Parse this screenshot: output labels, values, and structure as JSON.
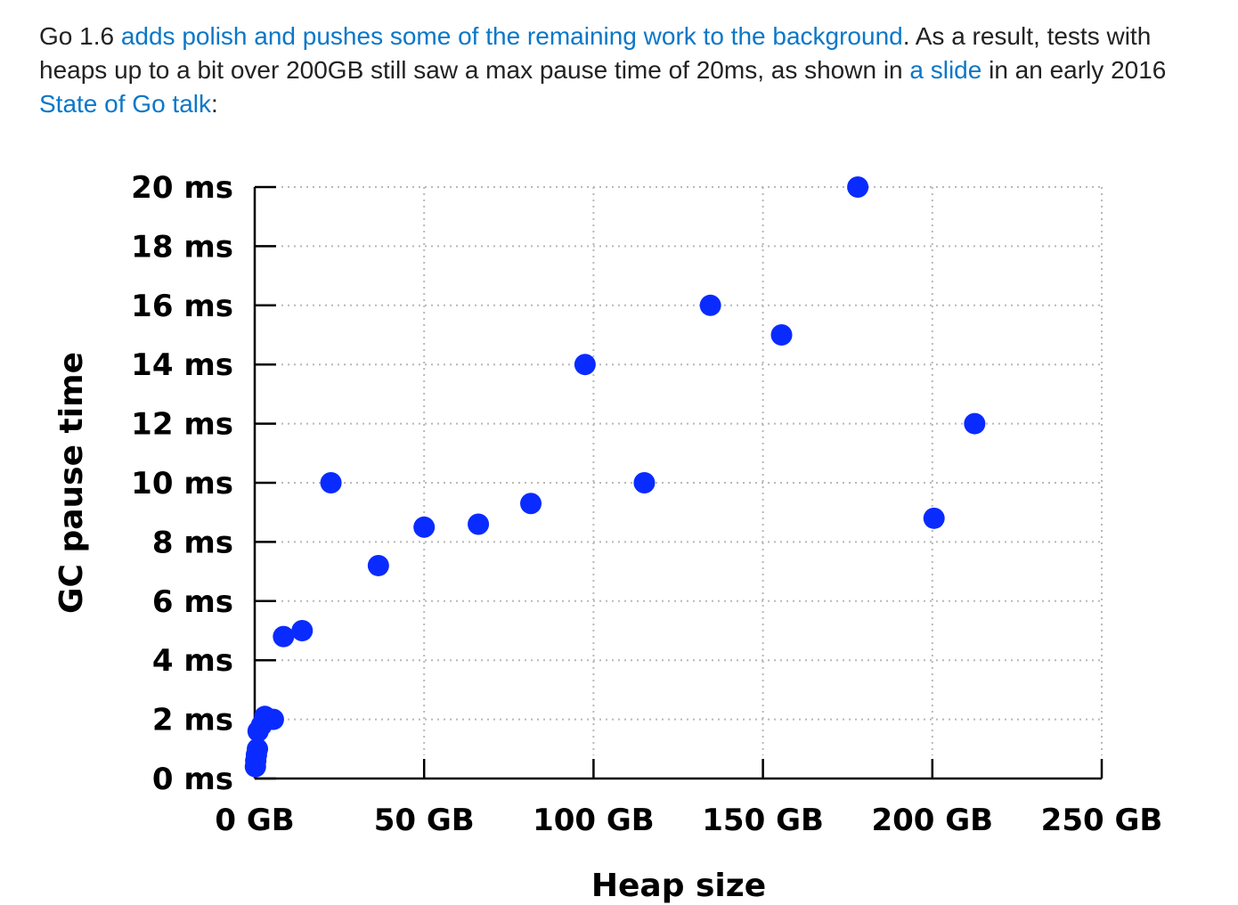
{
  "paragraph": {
    "t1": "Go 1.6 ",
    "link1": "adds polish and pushes some of the remaining work to the background",
    "t2": ". As a result, tests with heaps up to a bit over 200GB still saw a max pause time of 20ms, as shown in ",
    "link2": "a slide",
    "t3": " in an early 2016 ",
    "link3": "State of Go talk",
    "t4": ":"
  },
  "colors": {
    "link": "#0b77c8",
    "point": "#0a2bff",
    "grid": "#b8b8b8"
  },
  "chart_data": {
    "type": "scatter",
    "xlabel": "Heap size",
    "ylabel": "GC pause time",
    "xlim": [
      0,
      250
    ],
    "ylim": [
      0,
      20
    ],
    "xticks": [
      {
        "v": 0,
        "label": "0 GB"
      },
      {
        "v": 50,
        "label": "50 GB"
      },
      {
        "v": 100,
        "label": "100 GB"
      },
      {
        "v": 150,
        "label": "150 GB"
      },
      {
        "v": 200,
        "label": "200 GB"
      },
      {
        "v": 250,
        "label": "250 GB"
      }
    ],
    "yticks": [
      {
        "v": 0,
        "label": "0 ms"
      },
      {
        "v": 2,
        "label": "2 ms"
      },
      {
        "v": 4,
        "label": "4 ms"
      },
      {
        "v": 6,
        "label": "6 ms"
      },
      {
        "v": 8,
        "label": "8 ms"
      },
      {
        "v": 10,
        "label": "10 ms"
      },
      {
        "v": 12,
        "label": "12 ms"
      },
      {
        "v": 14,
        "label": "14 ms"
      },
      {
        "v": 16,
        "label": "16 ms"
      },
      {
        "v": 18,
        "label": "18 ms"
      },
      {
        "v": 20,
        "label": "20 ms"
      }
    ],
    "grid": true,
    "points": [
      {
        "x": 0.2,
        "y": 0.4
      },
      {
        "x": 0.3,
        "y": 0.6
      },
      {
        "x": 0.5,
        "y": 0.8
      },
      {
        "x": 0.8,
        "y": 1.0
      },
      {
        "x": 1.0,
        "y": 1.6
      },
      {
        "x": 2.0,
        "y": 1.8
      },
      {
        "x": 3.0,
        "y": 2.1
      },
      {
        "x": 5.5,
        "y": 2.0
      },
      {
        "x": 8.5,
        "y": 4.8
      },
      {
        "x": 14.0,
        "y": 5.0
      },
      {
        "x": 22.5,
        "y": 10.0
      },
      {
        "x": 36.5,
        "y": 7.2
      },
      {
        "x": 50.0,
        "y": 8.5
      },
      {
        "x": 66.0,
        "y": 8.6
      },
      {
        "x": 81.5,
        "y": 9.3
      },
      {
        "x": 97.5,
        "y": 14.0
      },
      {
        "x": 115.0,
        "y": 10.0
      },
      {
        "x": 134.5,
        "y": 16.0
      },
      {
        "x": 155.5,
        "y": 15.0
      },
      {
        "x": 178.0,
        "y": 20.0
      },
      {
        "x": 200.5,
        "y": 8.8
      },
      {
        "x": 212.5,
        "y": 12.0
      }
    ]
  }
}
